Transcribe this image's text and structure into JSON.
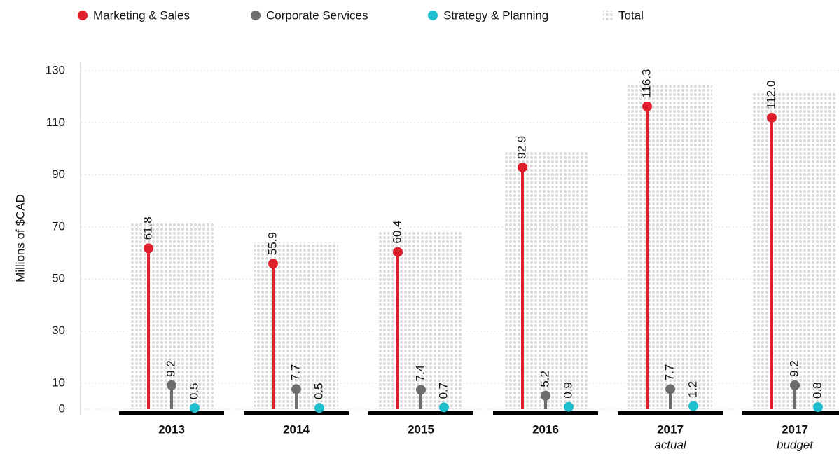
{
  "chart_data": {
    "type": "lollipop",
    "y_axis_label": "Millions of $CAD",
    "categories": [
      "2013",
      "2014",
      "2015",
      "2016",
      "2017",
      "2017"
    ],
    "category_sublabels": [
      null,
      null,
      null,
      null,
      "actual",
      "budget"
    ],
    "series": [
      {
        "name": "Marketing & Sales",
        "color": "#e01f2d",
        "values": [
          61.8,
          55.9,
          60.4,
          92.9,
          116.3,
          112.0
        ],
        "value_labels": [
          "61.8",
          "55.9",
          "60.4",
          "92.9",
          "116.3",
          "112.0"
        ]
      },
      {
        "name": "Corporate Services",
        "color": "#6d6d70",
        "values": [
          9.2,
          7.7,
          7.4,
          5.2,
          7.7,
          9.2
        ]
      },
      {
        "name": "Strategy & Planning",
        "color": "#1fbfcf",
        "values": [
          0.5,
          0.5,
          0.7,
          0.9,
          1.2,
          0.8
        ]
      },
      {
        "name": "Total",
        "color": "#d6d6d6",
        "values": [
          71.5,
          64.1,
          68.5,
          99.0,
          125.2,
          122.0
        ]
      }
    ],
    "ylim": [
      0,
      130
    ],
    "yticks": [
      0,
      10,
      30,
      50,
      70,
      90,
      110,
      130
    ],
    "grid": true,
    "legend": "top"
  }
}
